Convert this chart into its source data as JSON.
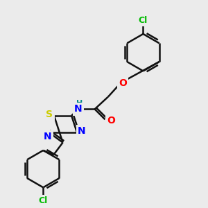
{
  "background_color": "#ebebeb",
  "atom_colors": {
    "N": "#0000ff",
    "O": "#ff0000",
    "S": "#cccc00",
    "Cl": "#00bb00",
    "H": "#008888"
  },
  "bond_color": "#111111",
  "bond_lw": 1.8,
  "font_size_atom": 10,
  "font_size_cl": 9,
  "font_size_h": 8
}
